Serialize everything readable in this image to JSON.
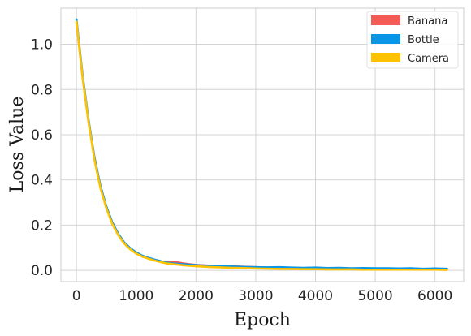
{
  "chart_data": {
    "type": "line",
    "title": "",
    "xlabel": "Epoch",
    "ylabel": "Loss Value",
    "xlim": [
      -260,
      6480
    ],
    "ylim": [
      -0.05,
      1.16
    ],
    "xticks": [
      0,
      1000,
      2000,
      3000,
      4000,
      5000,
      6000
    ],
    "yticks": [
      0.0,
      0.2,
      0.4,
      0.6,
      0.8,
      1.0
    ],
    "grid": true,
    "legend_position": "top-right",
    "x": [
      0,
      100,
      200,
      300,
      400,
      500,
      600,
      700,
      800,
      900,
      1000,
      1100,
      1200,
      1300,
      1400,
      1500,
      1600,
      1700,
      1800,
      1900,
      2000,
      2200,
      2400,
      2600,
      2800,
      3000,
      3200,
      3400,
      3600,
      3800,
      4000,
      4200,
      4400,
      4600,
      4800,
      5000,
      5200,
      5400,
      5600,
      5800,
      6000,
      6200
    ],
    "series": [
      {
        "name": "Banana",
        "color": "#f45b55",
        "values": [
          1.1,
          0.86,
          0.66,
          0.5,
          0.37,
          0.28,
          0.21,
          0.16,
          0.122,
          0.097,
          0.078,
          0.064,
          0.055,
          0.047,
          0.041,
          0.036,
          0.037,
          0.035,
          0.03,
          0.027,
          0.024,
          0.021,
          0.02,
          0.018,
          0.016,
          0.014,
          0.012,
          0.012,
          0.011,
          0.01,
          0.01,
          0.009,
          0.009,
          0.008,
          0.008,
          0.008,
          0.007,
          0.007,
          0.007,
          0.006,
          0.006,
          0.006
        ]
      },
      {
        "name": "Bottle",
        "color": "#0a96e6",
        "values": [
          1.11,
          0.87,
          0.67,
          0.5,
          0.375,
          0.283,
          0.212,
          0.161,
          0.123,
          0.098,
          0.079,
          0.065,
          0.056,
          0.048,
          0.041,
          0.034,
          0.031,
          0.029,
          0.027,
          0.025,
          0.023,
          0.02,
          0.019,
          0.017,
          0.015,
          0.014,
          0.013,
          0.014,
          0.012,
          0.011,
          0.012,
          0.01,
          0.011,
          0.009,
          0.01,
          0.009,
          0.009,
          0.008,
          0.009,
          0.007,
          0.008,
          0.007
        ]
      },
      {
        "name": "Camera",
        "color": "#ffc200",
        "values": [
          1.1,
          0.86,
          0.66,
          0.49,
          0.365,
          0.275,
          0.205,
          0.155,
          0.118,
          0.093,
          0.074,
          0.061,
          0.052,
          0.044,
          0.037,
          0.031,
          0.028,
          0.025,
          0.022,
          0.02,
          0.018,
          0.015,
          0.013,
          0.011,
          0.01,
          0.008,
          0.007,
          0.006,
          0.006,
          0.005,
          0.005,
          0.004,
          0.004,
          0.004,
          0.003,
          0.003,
          0.003,
          0.003,
          0.003,
          0.003,
          0.003,
          0.002
        ]
      }
    ]
  }
}
